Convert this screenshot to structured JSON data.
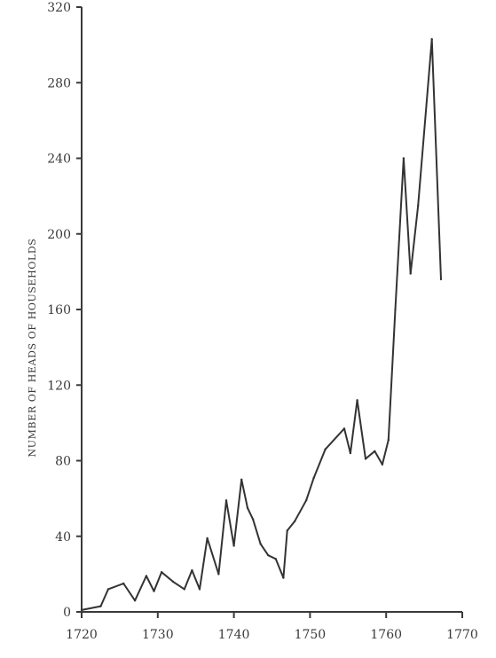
{
  "chart_data": {
    "type": "line",
    "title": "",
    "xlabel": "",
    "ylabel": "NUMBER OF HEADS OF HOUSEHOLDS",
    "xlim": [
      1720,
      1770
    ],
    "ylim": [
      0,
      320
    ],
    "x_ticks": [
      1720,
      1730,
      1740,
      1750,
      1760,
      1770
    ],
    "y_ticks": [
      0,
      40,
      80,
      120,
      160,
      200,
      240,
      280,
      320
    ],
    "grid": false,
    "legend": "none",
    "series": [
      {
        "x": [
          1720,
          1722.5,
          1723.5,
          1725.5,
          1727,
          1728.5,
          1729.5,
          1730.5,
          1732,
          1733.5,
          1734.5,
          1735.5,
          1736.5,
          1738,
          1739,
          1740,
          1741,
          1741.8,
          1742.5,
          1743.5,
          1744.5,
          1745.5,
          1746.5,
          1747,
          1748,
          1749.5,
          1750.5,
          1752,
          1754.5,
          1755.3,
          1756.2,
          1757.3,
          1758.5,
          1759.5,
          1760.3,
          1761.2,
          1762.3,
          1763.2,
          1764.2,
          1766,
          1767.2
        ],
        "y": [
          1,
          3,
          12,
          15,
          6,
          19,
          11,
          21,
          16,
          12,
          22,
          12,
          39,
          20,
          59,
          35,
          70,
          55,
          49,
          36,
          30,
          28,
          18,
          43,
          48,
          59,
          71,
          86,
          97,
          84,
          112,
          81,
          85,
          78,
          91,
          160,
          240,
          179,
          215,
          303,
          176
        ]
      }
    ]
  },
  "colors": {
    "line": "#333333",
    "axis": "#3a3a3a",
    "background": "#ffffff"
  }
}
